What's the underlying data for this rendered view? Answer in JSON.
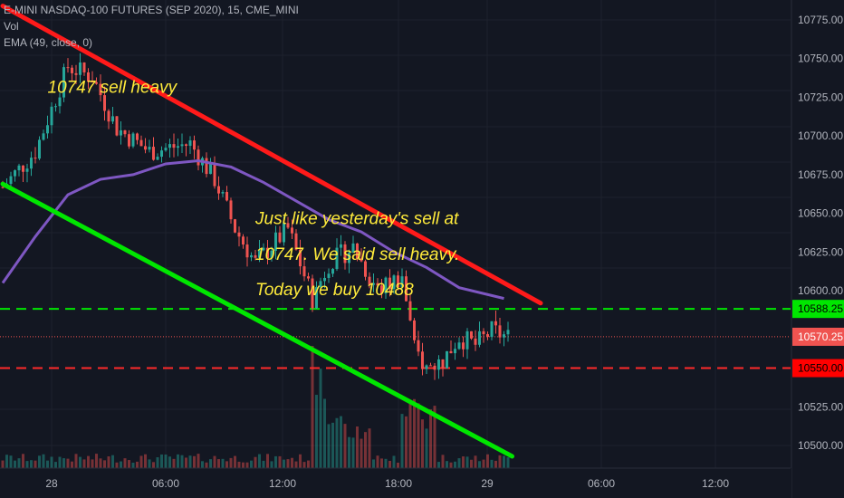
{
  "legend": {
    "title": "E-MINI NASDAQ-100 FUTURES (SEP 2020), 15, CME_MINI",
    "volume": "Vol",
    "ema": "EMA (49, close, 0)"
  },
  "chart_data": {
    "type": "candlestick",
    "symbol": "E-MINI NASDAQ-100 FUTURES (SEP 2020), 15, CME_MINI",
    "timeframe_minutes": 15,
    "ylim": [
      10488,
      10783
    ],
    "y_ticks": [
      "10775.00",
      "10750.00",
      "10725.00",
      "10700.00",
      "10675.00",
      "10650.00",
      "10625.00",
      "10600.00",
      "10525.00",
      "10500.00"
    ],
    "x_ticks": [
      "28",
      "06:00",
      "12:00",
      "18:00",
      "29",
      "06:00",
      "12:00"
    ],
    "price_labels": [
      {
        "name": "upper-level",
        "value": "10588.25",
        "color": "#00e600",
        "text_color": "#000000"
      },
      {
        "name": "last-price",
        "value": "10570.25",
        "color": "#ef5350",
        "text_color": "#ffffff"
      },
      {
        "name": "lower-level",
        "value": "10550.00",
        "color": "#ff0000",
        "text_color": "#000000"
      }
    ],
    "horizontal_levels": [
      {
        "name": "green-dashed-level",
        "price": 10588.25,
        "color": "#00e600",
        "style": "dashed"
      },
      {
        "name": "red-dashed-level",
        "price": 10550.0,
        "color": "#ff2a2a",
        "style": "dashed"
      },
      {
        "name": "last-price-line",
        "price": 10570.25,
        "color": "#ef5350",
        "style": "dotted"
      }
    ],
    "trend_lines": [
      {
        "name": "red-upper-trendline",
        "color": "#ff1a1a",
        "start": {
          "time": 0,
          "price": 10784
        },
        "end": {
          "time": 132,
          "price": 10592
        }
      },
      {
        "name": "green-lower-trendline",
        "color": "#00e600",
        "start": {
          "time": 0,
          "price": 10669
        },
        "end": {
          "time": 125,
          "price": 10493
        }
      }
    ],
    "annotations": [
      {
        "text": "10747 sell heavy",
        "time": 11,
        "price": 10728
      },
      {
        "text": "Just like yesterday's sell at",
        "time": 62,
        "price": 10643
      },
      {
        "text": "10747. We said sell heavy.",
        "time": 62,
        "price": 10620
      },
      {
        "text": "Today we buy 10488",
        "time": 62,
        "price": 10597
      }
    ],
    "annotation_color": "#ffeb3b",
    "colors": {
      "up": "#26a69a",
      "down": "#ef5350",
      "ema": "#7e57c2",
      "grid": "#1e222d",
      "background": "#131722",
      "axis_text": "#b2b5be"
    }
  }
}
